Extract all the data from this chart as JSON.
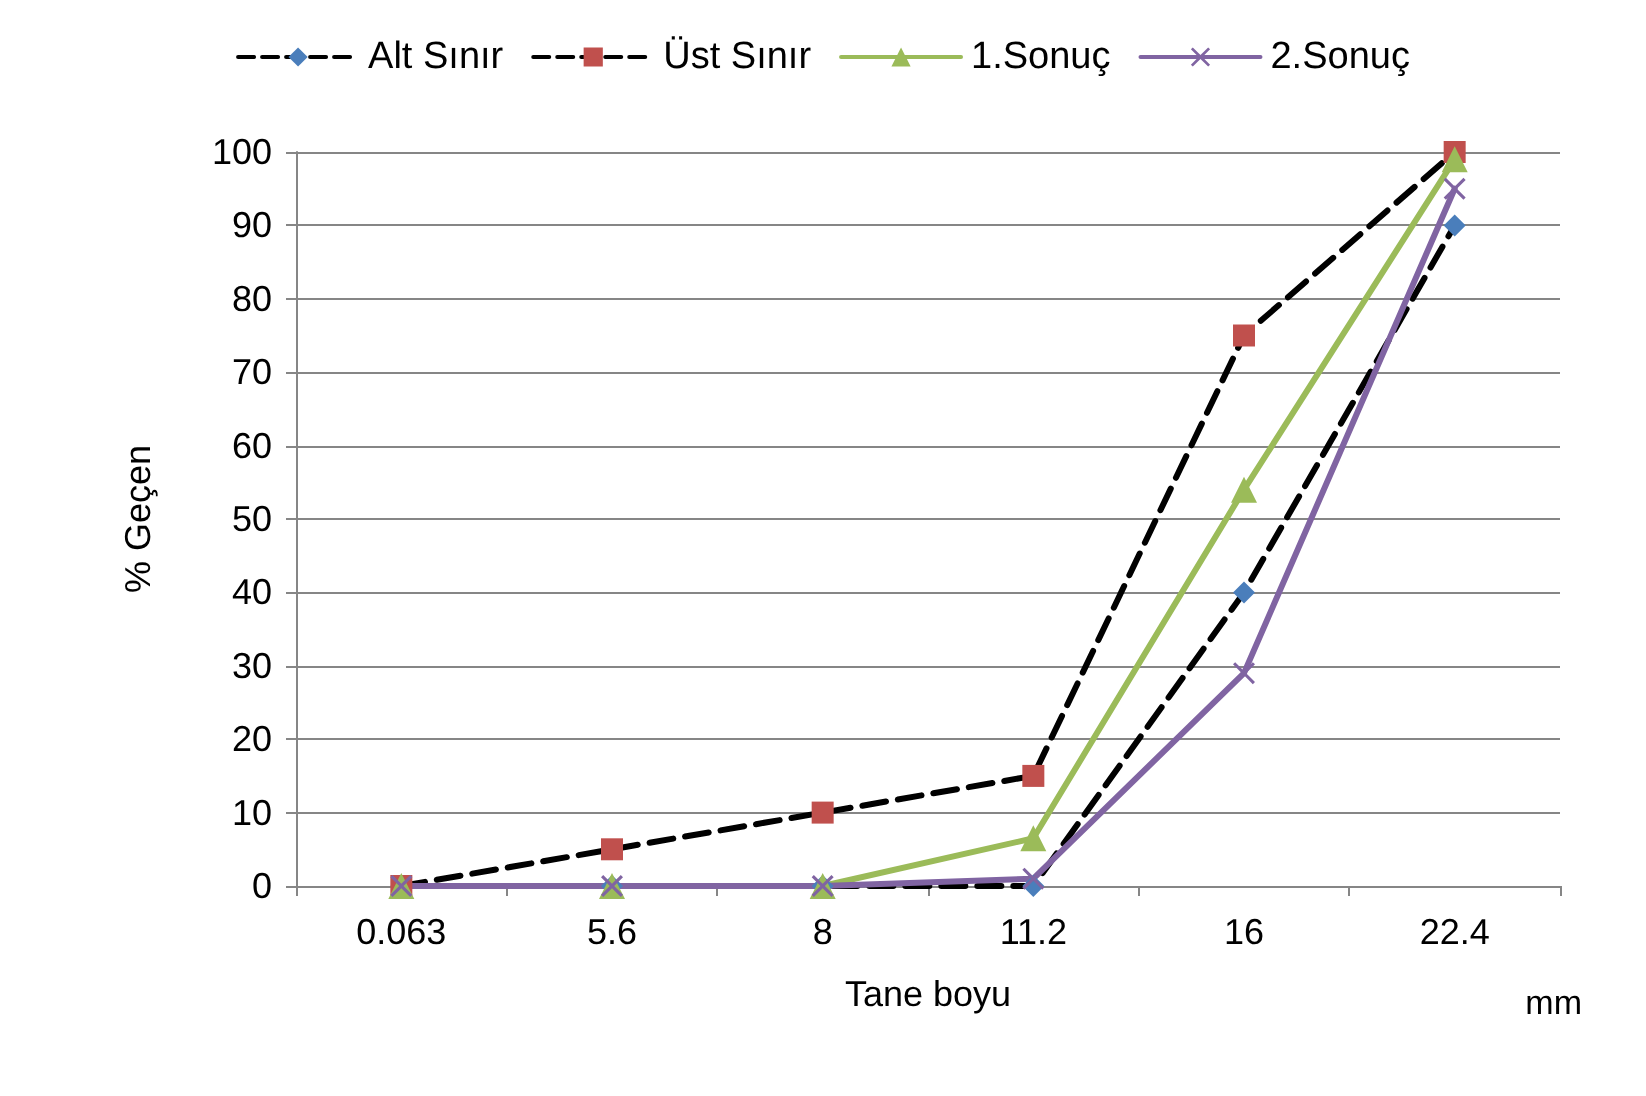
{
  "chart_data": {
    "type": "line",
    "xlabel": "Tane boyu",
    "ylabel": "% Geçen",
    "annotations": [
      "mm"
    ],
    "categories": [
      "0.063",
      "5.6",
      "8",
      "11.2",
      "16",
      "22.4"
    ],
    "series": [
      {
        "name": "Alt Sınır",
        "color": "#000000",
        "colors": [
          "#4a7ebb",
          "#4a7ebb",
          "#4a7ebb",
          "#4a7ebb",
          "#4a7ebb",
          "#4a7ebb"
        ],
        "marker": "diamond",
        "line_style": "dashed",
        "values": [
          0,
          0,
          0,
          0,
          40,
          90
        ]
      },
      {
        "name": "Üst Sınır",
        "color": "#000000",
        "colors": [
          "#c0504d",
          "#c0504d",
          "#c0504d",
          "#c0504d",
          "#c0504d",
          "#c0504d"
        ],
        "marker": "square",
        "line_style": "dashed",
        "values": [
          0,
          5,
          10,
          15,
          75,
          100
        ]
      },
      {
        "name": "1.Sonuç",
        "color": "#9bbb59",
        "marker": "triangle",
        "line_style": "solid",
        "values": [
          0,
          0,
          0,
          6.5,
          54,
          99
        ]
      },
      {
        "name": "2.Sonuç",
        "color": "#8064a2",
        "marker": "cross",
        "line_style": "solid",
        "values": [
          0,
          0,
          0,
          1,
          29,
          95
        ]
      }
    ],
    "ylim": [
      0,
      100
    ],
    "yticks": [
      0,
      10,
      20,
      30,
      40,
      50,
      60,
      70,
      80,
      90,
      100
    ],
    "grid": "y",
    "legend": "top"
  }
}
